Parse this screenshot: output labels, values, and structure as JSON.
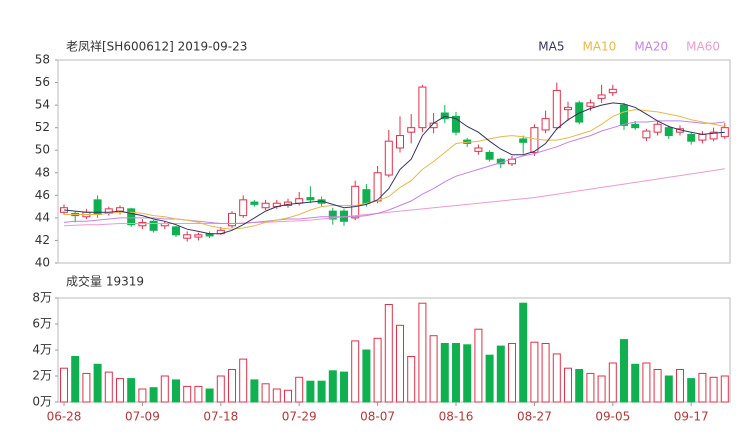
{
  "chart_data": [
    {
      "type": "candlestick",
      "title": "老凤祥[SH600612] 2019-09-23",
      "up_color": "#e0304a",
      "down_color": "#10b050",
      "open": [
        44.5,
        44.4,
        44.1,
        45.6,
        44.4,
        44.6,
        44.8,
        43.3,
        43.7,
        43.3,
        43.2,
        42.2,
        42.3,
        42.6,
        42.6,
        43.3,
        44.2,
        45.4,
        44.9,
        45.0,
        45.1,
        45.3,
        45.8,
        45.6,
        44.6,
        44.6,
        44.0,
        46.5,
        45.5,
        47.8,
        50.2,
        51.6,
        52.0,
        52.0,
        53.3,
        53.0,
        50.9,
        49.9,
        49.8,
        49.2,
        48.8,
        51.0,
        49.8,
        51.8,
        52.0,
        53.6,
        54.2,
        53.9,
        54.6,
        55.1,
        54.0,
        52.3,
        51.1,
        51.6,
        52.0,
        51.6,
        51.4,
        50.9,
        51.0,
        51.2
      ],
      "high": [
        45.2,
        44.6,
        44.8,
        46.0,
        45.0,
        45.1,
        44.9,
        43.9,
        43.8,
        43.7,
        43.3,
        42.8,
        42.7,
        42.8,
        43.2,
        44.6,
        46.0,
        45.6,
        45.6,
        45.6,
        45.7,
        46.3,
        46.8,
        45.9,
        44.9,
        44.8,
        47.3,
        47.0,
        48.6,
        51.8,
        53.0,
        53.2,
        55.8,
        53.3,
        54.0,
        53.4,
        51.1,
        50.5,
        50.0,
        49.3,
        49.5,
        51.3,
        52.3,
        53.5,
        56.0,
        54.3,
        54.4,
        54.5,
        55.8,
        55.8,
        54.2,
        52.6,
        51.9,
        52.6,
        52.2,
        52.2,
        51.6,
        51.7,
        52.0,
        52.4
      ],
      "low": [
        44.3,
        43.6,
        43.9,
        44.0,
        44.2,
        44.3,
        43.2,
        43.0,
        42.7,
        43.0,
        42.3,
        41.9,
        42.0,
        42.2,
        42.5,
        43.1,
        44.0,
        45.0,
        44.7,
        44.8,
        44.9,
        45.1,
        45.3,
        45.0,
        43.4,
        43.3,
        43.8,
        45.0,
        45.3,
        47.6,
        49.8,
        50.6,
        51.6,
        51.5,
        52.4,
        51.3,
        50.3,
        49.6,
        49.0,
        48.4,
        48.6,
        49.7,
        49.5,
        51.5,
        51.8,
        52.6,
        52.3,
        53.5,
        54.2,
        54.8,
        51.8,
        51.8,
        50.8,
        51.3,
        51.0,
        51.3,
        50.5,
        50.6,
        50.8,
        51.0
      ],
      "close": [
        44.9,
        44.2,
        44.5,
        44.3,
        44.8,
        44.9,
        43.4,
        43.6,
        42.9,
        43.5,
        42.5,
        42.5,
        42.5,
        42.4,
        42.9,
        44.4,
        45.6,
        45.2,
        45.3,
        45.3,
        45.4,
        45.7,
        45.6,
        45.3,
        43.9,
        43.7,
        46.8,
        45.3,
        48.0,
        50.8,
        51.3,
        52.0,
        55.6,
        52.4,
        52.8,
        51.6,
        50.6,
        50.2,
        49.2,
        48.8,
        49.2,
        50.7,
        52.0,
        52.8,
        55.3,
        53.8,
        52.5,
        54.2,
        54.9,
        55.4,
        52.2,
        52.0,
        51.7,
        52.3,
        51.3,
        51.9,
        50.8,
        51.4,
        51.6,
        52.0
      ],
      "series": [
        {
          "name": "MA5",
          "color": "#34345f",
          "values": [
            44.7,
            44.6,
            44.5,
            44.5,
            44.5,
            44.6,
            44.4,
            44.2,
            43.9,
            43.7,
            43.4,
            43.0,
            42.8,
            42.6,
            42.6,
            42.9,
            43.4,
            44.0,
            44.6,
            45.0,
            45.2,
            45.3,
            45.4,
            45.5,
            45.2,
            44.9,
            45.0,
            45.2,
            45.6,
            46.6,
            48.3,
            49.2,
            51.3,
            52.4,
            53.0,
            52.8,
            52.1,
            51.6,
            50.8,
            50.1,
            49.6,
            49.6,
            49.9,
            50.6,
            51.9,
            52.7,
            53.3,
            53.7,
            54.0,
            54.2,
            54.1,
            53.8,
            53.2,
            52.6,
            52.1,
            51.8,
            51.6,
            51.4,
            51.5,
            51.6
          ]
        },
        {
          "name": "MA10",
          "color": "#e8b84a",
          "values": [
            44.3,
            44.3,
            44.3,
            44.3,
            44.4,
            44.5,
            44.5,
            44.4,
            44.2,
            44.1,
            43.9,
            43.8,
            43.6,
            43.3,
            43.1,
            43.0,
            43.1,
            43.3,
            43.6,
            43.8,
            44.0,
            44.3,
            44.7,
            45.0,
            45.1,
            45.1,
            45.1,
            45.3,
            45.5,
            45.9,
            46.7,
            47.3,
            48.3,
            49.0,
            49.8,
            50.6,
            50.7,
            50.8,
            51.0,
            51.2,
            51.3,
            51.2,
            51.0,
            50.9,
            50.9,
            51.1,
            51.4,
            51.7,
            52.3,
            53.0,
            53.4,
            53.6,
            53.5,
            53.4,
            53.2,
            53.0,
            52.7,
            52.5,
            52.3,
            52.1
          ]
        },
        {
          "name": "MA20",
          "color": "#c384e0",
          "values": [
            43.6,
            43.7,
            43.7,
            43.8,
            43.9,
            44.0,
            44.0,
            44.0,
            44.0,
            43.9,
            43.9,
            43.8,
            43.7,
            43.6,
            43.5,
            43.5,
            43.5,
            43.6,
            43.7,
            43.8,
            43.9,
            43.9,
            44.0,
            44.1,
            44.1,
            44.1,
            44.1,
            44.2,
            44.4,
            44.7,
            45.1,
            45.5,
            46.1,
            46.6,
            47.2,
            47.7,
            48.0,
            48.3,
            48.6,
            48.9,
            49.2,
            49.5,
            49.7,
            50.0,
            50.3,
            50.7,
            51.0,
            51.3,
            51.7,
            52.0,
            52.3,
            52.5,
            52.5,
            52.6,
            52.6,
            52.6,
            52.5,
            52.4,
            52.4,
            52.5
          ]
        },
        {
          "name": "MA60",
          "color": "#ec9ccd",
          "values": [
            43.3,
            43.35,
            43.4,
            43.4,
            43.45,
            43.5,
            43.5,
            43.5,
            43.5,
            43.5,
            43.5,
            43.5,
            43.5,
            43.5,
            43.5,
            43.5,
            43.55,
            43.6,
            43.6,
            43.65,
            43.7,
            43.75,
            43.8,
            43.9,
            44.0,
            44.1,
            44.2,
            44.3,
            44.4,
            44.5,
            44.6,
            44.7,
            44.8,
            44.9,
            45.0,
            45.1,
            45.2,
            45.3,
            45.4,
            45.5,
            45.6,
            45.7,
            45.8,
            45.95,
            46.1,
            46.25,
            46.4,
            46.55,
            46.7,
            46.85,
            47.0,
            47.15,
            47.3,
            47.45,
            47.6,
            47.75,
            47.9,
            48.05,
            48.2,
            48.35
          ]
        }
      ],
      "ylim": [
        40,
        58
      ],
      "yticks": [
        40,
        42,
        44,
        46,
        48,
        50,
        52,
        54,
        56,
        58
      ]
    },
    {
      "type": "bar",
      "title": "成交量 19319",
      "categories": [
        "06-28",
        null,
        null,
        null,
        null,
        null,
        null,
        "07-09",
        null,
        null,
        null,
        null,
        null,
        null,
        "07-18",
        null,
        null,
        null,
        null,
        null,
        null,
        "07-29",
        null,
        null,
        null,
        null,
        null,
        null,
        "08-07",
        null,
        null,
        null,
        null,
        null,
        null,
        "08-16",
        null,
        null,
        null,
        null,
        null,
        null,
        "08-27",
        null,
        null,
        null,
        null,
        null,
        null,
        "09-05",
        null,
        null,
        null,
        null,
        null,
        null,
        "09-17",
        null,
        null,
        null
      ],
      "values": [
        2.6,
        3.5,
        2.2,
        2.9,
        2.3,
        1.8,
        1.8,
        1.0,
        1.1,
        2.0,
        1.7,
        1.2,
        1.2,
        1.0,
        2.0,
        2.5,
        3.3,
        1.7,
        1.4,
        1.0,
        0.9,
        1.9,
        1.6,
        1.6,
        2.4,
        2.3,
        4.7,
        4.0,
        4.9,
        7.5,
        5.9,
        3.5,
        7.6,
        5.1,
        4.5,
        4.5,
        4.4,
        5.6,
        3.6,
        4.3,
        4.5,
        7.6,
        4.6,
        4.5,
        3.7,
        2.6,
        2.5,
        2.2,
        2.0,
        3.0,
        4.8,
        2.9,
        3.0,
        2.5,
        2.0,
        2.5,
        1.8,
        2.2,
        1.9,
        2.0
      ],
      "ylim": [
        0,
        8
      ],
      "yticks": [
        {
          "value": 0,
          "label": "0万"
        },
        {
          "value": 2,
          "label": "2万"
        },
        {
          "value": 4,
          "label": "4万"
        },
        {
          "value": 6,
          "label": "6万"
        },
        {
          "value": 8,
          "label": "8万"
        }
      ]
    }
  ]
}
